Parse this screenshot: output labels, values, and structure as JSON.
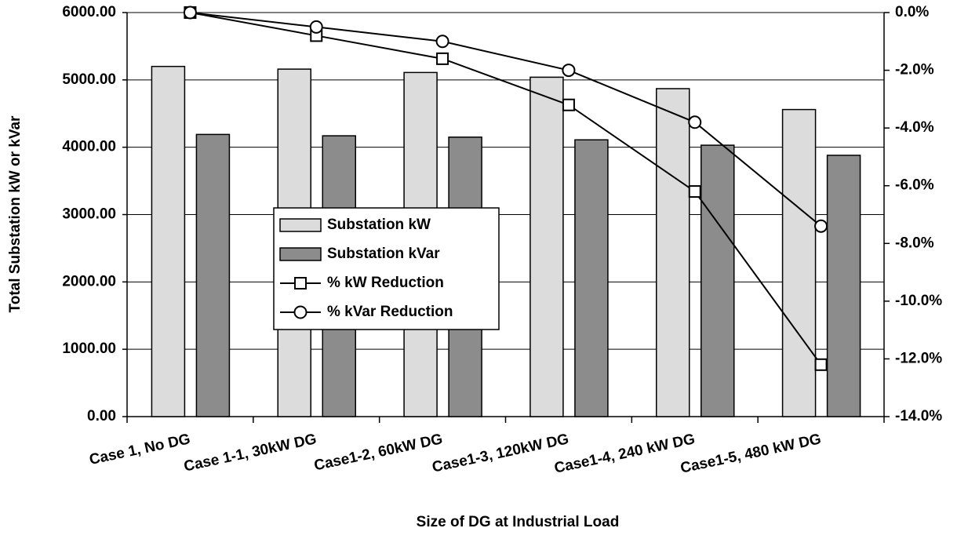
{
  "chart_data": {
    "type": "bar_line",
    "x_label": "Size of DG at Industrial Load",
    "y_label": "Total Substation kW or kVar",
    "categories": [
      "Case 1, No DG",
      "Case 1-1, 30kW DG",
      "Case1-2, 60kW DG",
      "Case1-3, 120kW DG",
      "Case1-4, 240 kW DG",
      "Case1-5, 480 kW DG"
    ],
    "series": [
      {
        "name": "Substation kW",
        "type": "bar",
        "color": "#dcdcdc",
        "values": [
          5200,
          5160,
          5110,
          5040,
          4870,
          4560
        ]
      },
      {
        "name": "Substation kVar",
        "type": "bar",
        "color": "#8c8c8c",
        "values": [
          4190,
          4170,
          4150,
          4110,
          4030,
          3880
        ]
      },
      {
        "name": "% kW Reduction",
        "type": "line",
        "axis": "y2",
        "marker": "square",
        "color": "#000000",
        "values": [
          0,
          -0.8,
          -1.6,
          -3.2,
          -6.2,
          -12.2
        ]
      },
      {
        "name": "% kVar Reduction",
        "type": "line",
        "axis": "y2",
        "marker": "circle",
        "color": "#000000",
        "values": [
          0,
          -0.5,
          -1.0,
          -2.0,
          -3.8,
          -7.4
        ]
      }
    ],
    "ylim": [
      0,
      6000
    ],
    "yticks": [
      {
        "value": 0,
        "label": "0.00"
      },
      {
        "value": 1000,
        "label": "1000.00"
      },
      {
        "value": 2000,
        "label": "2000.00"
      },
      {
        "value": 3000,
        "label": "3000.00"
      },
      {
        "value": 4000,
        "label": "4000.00"
      },
      {
        "value": 5000,
        "label": "5000.00"
      },
      {
        "value": 6000,
        "label": "6000.00"
      }
    ],
    "y2lim": [
      -14,
      0
    ],
    "y2ticks": [
      {
        "value": -14,
        "label": "-14.0%"
      },
      {
        "value": -12,
        "label": "-12.0%"
      },
      {
        "value": -10,
        "label": "-10.0%"
      },
      {
        "value": -8,
        "label": "-8.0%"
      },
      {
        "value": -6,
        "label": "-6.0%"
      },
      {
        "value": -4,
        "label": "-4.0%"
      },
      {
        "value": -2,
        "label": "-2.0%"
      },
      {
        "value": 0,
        "label": "0.0%"
      }
    ],
    "grid": true
  }
}
